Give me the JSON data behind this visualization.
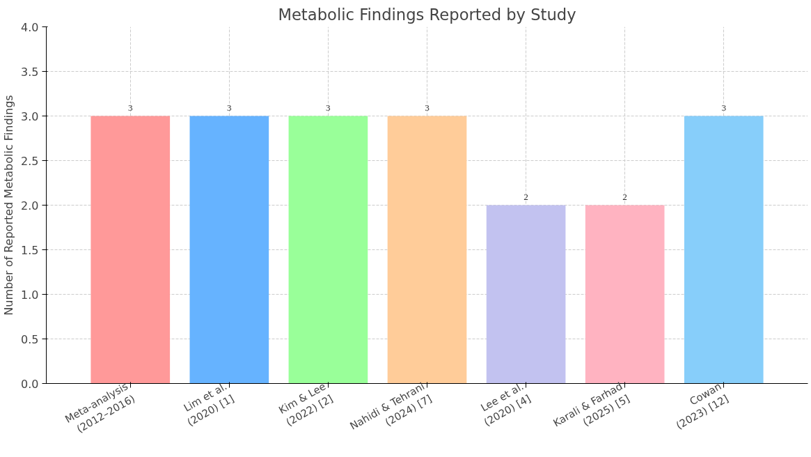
{
  "chart_data": {
    "type": "bar",
    "title": "Metabolic Findings Reported by Study",
    "ylabel": "Number of Reported Metabolic Findings",
    "categories": [
      "Meta-analysis\n(2012–2016)",
      "Lim et al.\n(2020) [1]",
      "Kim & Lee\n(2022) [2]",
      "Nahidi & Tehrani\n(2024) [7]",
      "Lee et al.\n(2020) [4]",
      "Karali & Farhad\n(2025) [5]",
      "Cowan\n(2023) [12]"
    ],
    "values": [
      3,
      3,
      3,
      3,
      2,
      2,
      3
    ],
    "colors": [
      "#ff9999",
      "#66b3ff",
      "#99ff99",
      "#ffcc99",
      "#c2c2f0",
      "#ffb3c1",
      "#87cefa"
    ],
    "ylim": [
      0,
      4
    ],
    "yticks": [
      {
        "value": 0,
        "label": "0.0"
      },
      0.5,
      {
        "value": 1,
        "label": "1.0"
      },
      1.5,
      {
        "value": 2,
        "label": "2.0"
      },
      2.5,
      {
        "value": 3,
        "label": "3.0"
      },
      3.5,
      {
        "value": 4,
        "label": "4.0"
      }
    ],
    "grid": true,
    "data_labels": true
  }
}
